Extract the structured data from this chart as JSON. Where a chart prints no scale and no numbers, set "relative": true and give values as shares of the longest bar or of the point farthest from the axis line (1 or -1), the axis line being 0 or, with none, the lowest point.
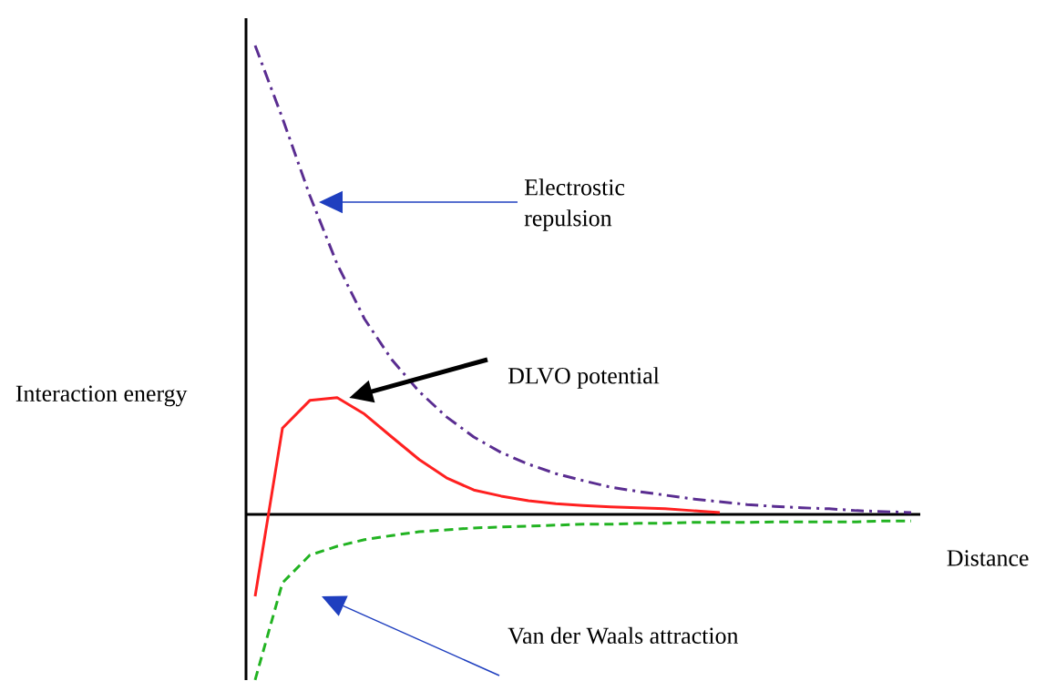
{
  "chart_data": {
    "type": "line",
    "relative": true,
    "xlabel": "Distance",
    "ylabel": "Interaction energy",
    "categories": [
      null,
      null,
      null,
      null,
      null,
      null,
      null,
      null,
      null,
      null,
      null,
      null,
      null,
      null,
      null,
      null,
      null,
      null,
      null,
      null,
      null,
      null,
      null,
      null,
      null
    ],
    "series": [
      {
        "color": "#5a2d91",
        "line_style": "dashdot",
        "values": [
          1.0,
          0.845,
          0.68,
          0.534,
          0.417,
          0.33,
          0.262,
          0.208,
          0.165,
          0.132,
          0.107,
          0.087,
          0.072,
          0.058,
          0.049,
          0.041,
          0.033,
          0.027,
          0.021,
          0.017,
          0.014,
          0.012,
          0.008,
          0.006,
          0.004
        ]
      },
      {
        "color": "#ff2020",
        "line_style": "solid",
        "values": [
          -0.175,
          0.184,
          0.243,
          0.249,
          0.214,
          0.165,
          0.117,
          0.078,
          0.052,
          0.039,
          0.029,
          0.023,
          0.019,
          0.016,
          0.014,
          0.012,
          0.008,
          0.004,
          null,
          null,
          null,
          null,
          null,
          null,
          null
        ]
      },
      {
        "color": "#22b322",
        "line_style": "dashed",
        "values": [
          -0.353,
          -0.146,
          -0.087,
          -0.068,
          -0.054,
          -0.045,
          -0.037,
          -0.033,
          -0.029,
          -0.027,
          -0.025,
          -0.023,
          -0.021,
          -0.021,
          -0.019,
          -0.019,
          -0.017,
          -0.017,
          -0.017,
          -0.016,
          -0.016,
          -0.016,
          -0.016,
          -0.014,
          -0.014
        ]
      }
    ],
    "annotations": [
      "Electrostic repulsion",
      "DLVO potential",
      "Van der Waals attraction"
    ]
  }
}
